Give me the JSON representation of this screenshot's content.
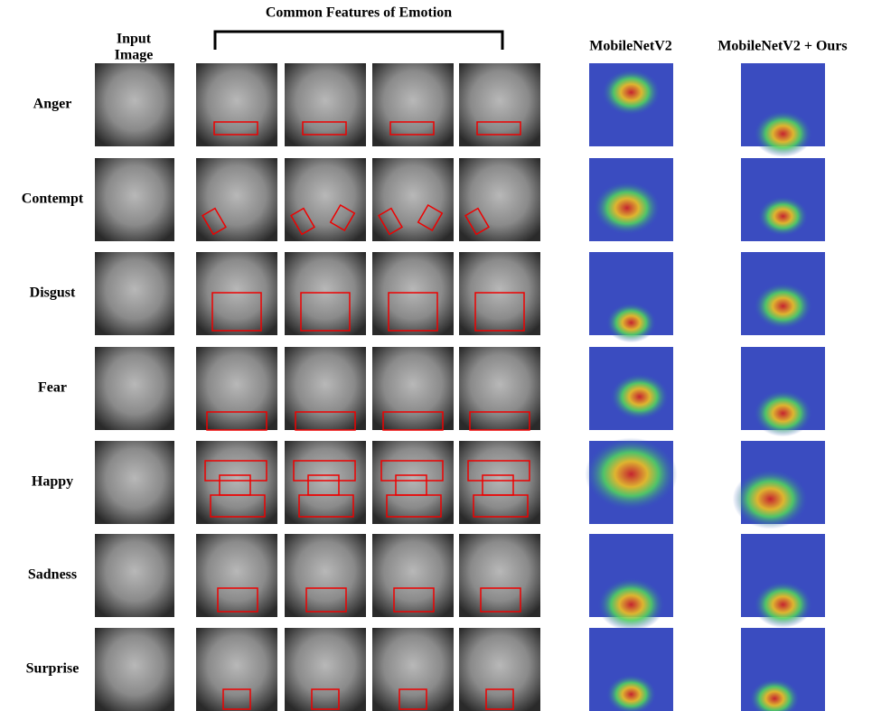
{
  "header": {
    "input_lines": [
      "Input",
      "Image"
    ],
    "common": "Common Features of Emotion",
    "baseline": "MobileNetV2",
    "ours": "MobileNetV2 + Ours"
  },
  "rows": [
    "Anger",
    "Contempt",
    "Disgust",
    "Fear",
    "Happy",
    "Sadness",
    "Surprise"
  ]
}
